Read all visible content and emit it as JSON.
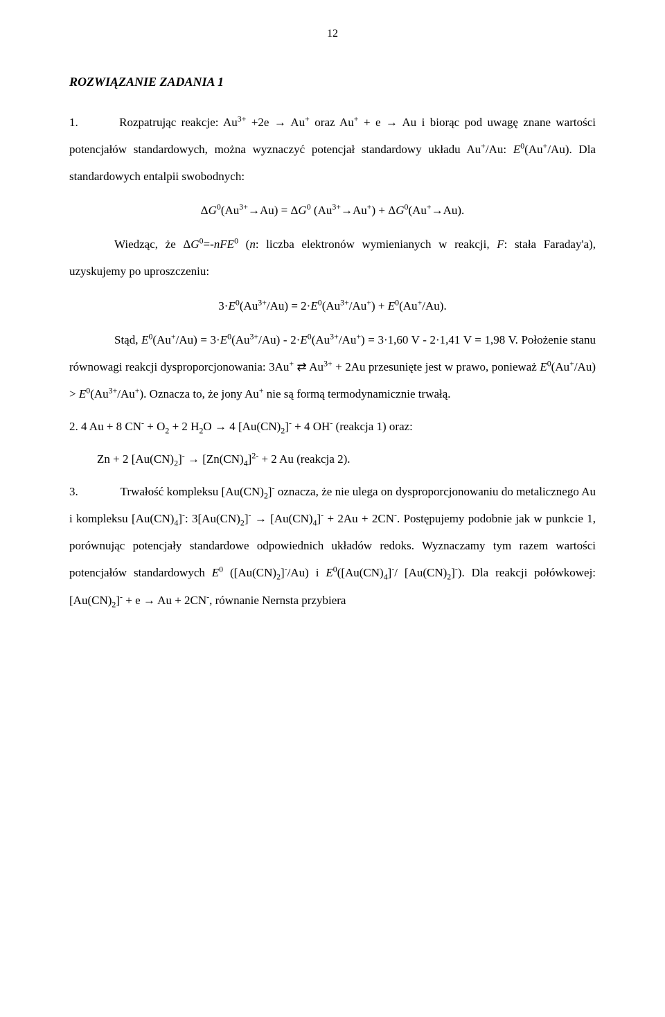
{
  "page_number": "12",
  "heading": "ROZWIĄZANIE  ZADANIA  1",
  "p1_a": "1.",
  "p1_b": "Rozpatrując reakcje: Au",
  "p1_c": " +2e → Au",
  "p1_d": " oraz Au",
  "p1_e": " + e → Au i biorąc pod uwagę znane wartości potencjałów standardowych, można wyznaczyć potencjał standardowy układu Au",
  "p1_f": "/Au: ",
  "p1_g": "(Au",
  "p1_h": "/Au). Dla standardowych entalpii swobodnych:",
  "eq1_a": "Δ",
  "eq1_b": "(Au",
  "eq1_c": "→Au) = Δ",
  "eq1_d": " (Au",
  "eq1_e": "→Au",
  "eq1_f": ") + Δ",
  "eq1_g": "(Au",
  "eq1_h": "→Au).",
  "p2_a": "Wiedząc, że Δ",
  "p2_b": "=-",
  "p2_c": " (",
  "p2_d": ": liczba elektronów wymienianych w reakcji, ",
  "p2_e": ": stała Faraday'a), uzyskujemy po uproszczeniu:",
  "eq2_a": "3·",
  "eq2_b": "(Au",
  "eq2_c": "/Au) = 2·",
  "eq2_d": "(Au",
  "eq2_e": "/Au",
  "eq2_f": ") + ",
  "eq2_g": "(Au",
  "eq2_h": "/Au).",
  "p3_a": "Stąd, ",
  "p3_b": "(Au",
  "p3_c": "/Au) =  3·",
  "p3_d": "(Au",
  "p3_e": "/Au) - 2·",
  "p3_f": "(Au",
  "p3_g": "/Au",
  "p3_h": ") = 3·1,60 V - 2·1,41 V = 1,98 V. Położenie stanu równowagi reakcji dysproporcjonowania: 3Au",
  "p3_i": " ⇄ Au",
  "p3_j": " + 2Au przesunięte jest w prawo, ponieważ ",
  "p3_k": "(Au",
  "p3_l": "/Au) > ",
  "p3_m": "(Au",
  "p3_n": "/Au",
  "p3_o": "). Oznacza to, że jony Au",
  "p3_p": " nie są formą termodynamicznie trwałą.",
  "p4_a": "2. 4 Au + 8 CN",
  "p4_b": " + O",
  "p4_c": " + 2 H",
  "p4_d": "O → 4 [Au(CN)",
  "p4_e": "]",
  "p4_f": " + 4 OH",
  "p4_g": " (reakcja 1)       oraz:",
  "p5_a": "Zn + 2 [Au(CN)",
  "p5_b": "]",
  "p5_c": " → [Zn(CN)",
  "p5_d": "]",
  "p5_e": " + 2 Au (reakcja 2).",
  "p6_a": "3.",
  "p6_b": "Trwałość kompleksu [Au(CN)",
  "p6_c": "]",
  "p6_d": " oznacza, że nie ulega on dysproporcjonowaniu do metalicznego Au i kompleksu [Au(CN)",
  "p6_e": "]",
  "p6_f": ": 3[Au(CN)",
  "p6_g": "]",
  "p6_h": " → [Au(CN)",
  "p6_i": "]",
  "p6_j": " + 2Au + 2CN",
  "p6_k": ". Postępujemy podobnie jak w punkcie 1, porównując potencjały standardowe odpowiednich układów redoks. Wyznaczamy tym razem wartości potencjałów standardowych ",
  "p6_l": " ([Au(CN)",
  "p6_m": "]",
  "p6_n": "/Au) i ",
  "p6_o": "([Au(CN)",
  "p6_p": "]",
  "p6_q": "/ [Au(CN)",
  "p6_r": "]",
  "p6_s": "). Dla reakcji połówkowej: [Au(CN)",
  "p6_t": "]",
  "p6_u": " + e → Au + 2CN",
  "p6_v": ", równanie Nernsta przybiera",
  "sym_G": "G",
  "sym_E": "E",
  "sym_n": "n",
  "sym_F": "F",
  "sym_nF": "nF",
  "sup_0": "0",
  "sup_plus": "+",
  "sup_3plus": "3+",
  "sup_minus": "-",
  "sup_2minus": "2-",
  "sub_2": "2",
  "sub_4": "4"
}
